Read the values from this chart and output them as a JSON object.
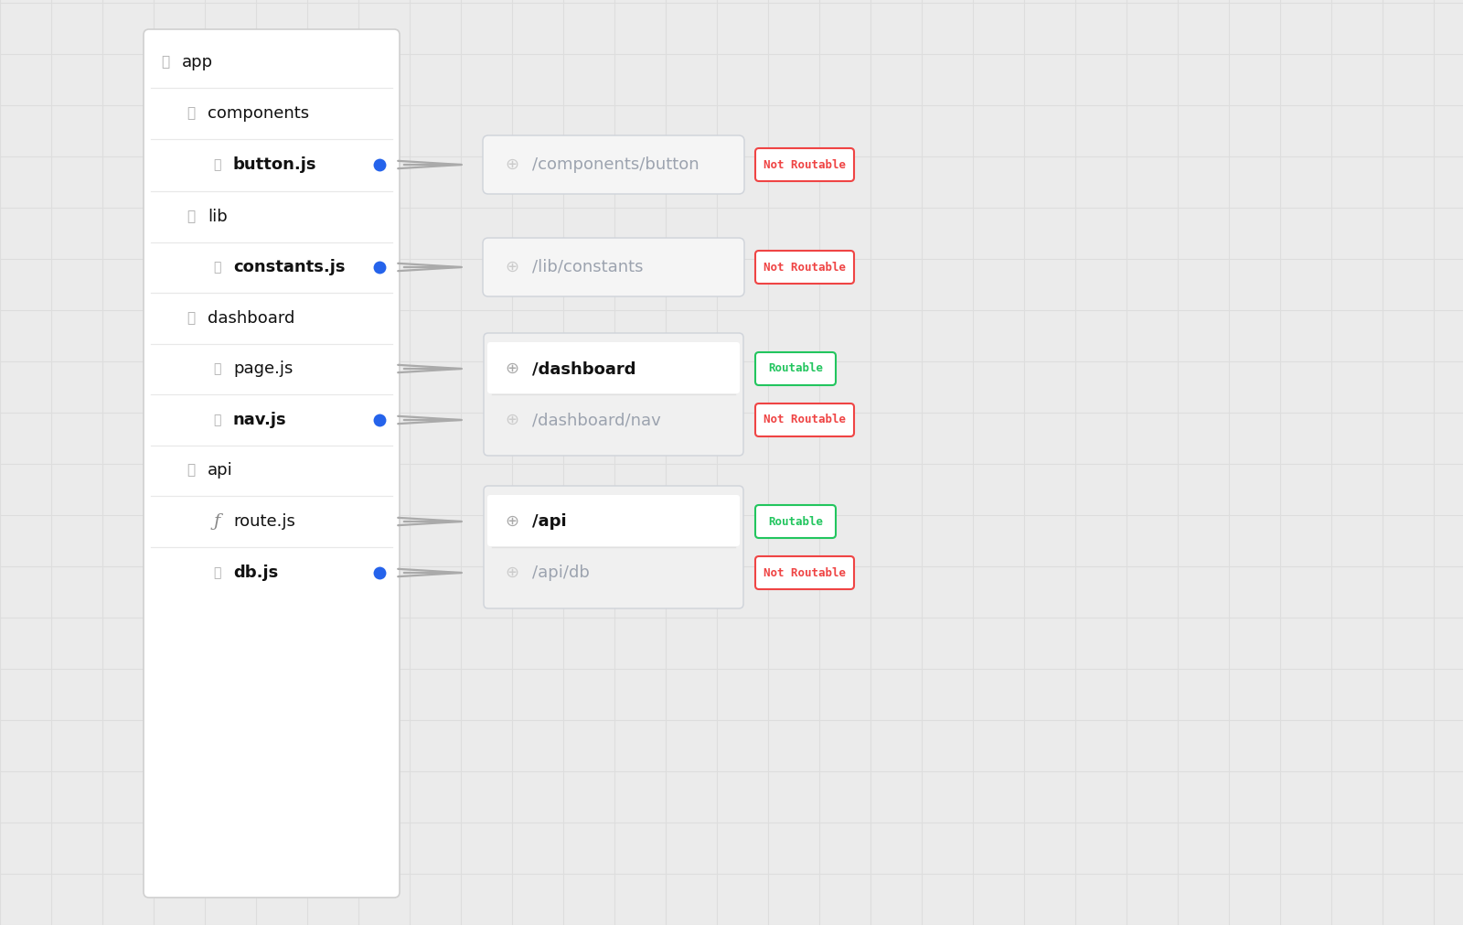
{
  "bg_color": "#ebebeb",
  "panel_color": "#ffffff",
  "panel_border": "#d0d0d0",
  "grid_line_color": "#dddddd",
  "grid_major_color": "#d8d8d8",
  "dot_color": "#2563eb",
  "arrow_color": "#aaaaaa",
  "url_box_border": "#d1d5db",
  "routable_badge": {
    "bg": "#ffffff",
    "border": "#22c55e",
    "text": "#22c55e",
    "label": "Routable"
  },
  "not_routable_badge": {
    "bg": "#ffffff",
    "border": "#ef4444",
    "text": "#ef4444",
    "label": "Not Routable"
  },
  "rows": [
    {
      "label": "app",
      "indent": 0,
      "type": "folder",
      "bold": false,
      "dot": false
    },
    {
      "label": "components",
      "indent": 1,
      "type": "folder",
      "bold": false,
      "dot": false
    },
    {
      "label": "button.js",
      "indent": 2,
      "type": "file",
      "bold": true,
      "dot": true,
      "url": "/components/button",
      "routable": false
    },
    {
      "label": "lib",
      "indent": 1,
      "type": "folder",
      "bold": false,
      "dot": false
    },
    {
      "label": "constants.js",
      "indent": 2,
      "type": "file",
      "bold": true,
      "dot": true,
      "url": "/lib/constants",
      "routable": false
    },
    {
      "label": "dashboard",
      "indent": 1,
      "type": "folder",
      "bold": false,
      "dot": false
    },
    {
      "label": "page.js",
      "indent": 2,
      "type": "file",
      "bold": false,
      "dot": false,
      "url": "/dashboard",
      "routable": true
    },
    {
      "label": "nav.js",
      "indent": 2,
      "type": "file",
      "bold": true,
      "dot": true,
      "url": "/dashboard/nav",
      "routable": false
    },
    {
      "label": "api",
      "indent": 1,
      "type": "folder",
      "bold": false,
      "dot": false
    },
    {
      "label": "route.js",
      "indent": 2,
      "type": "route",
      "bold": false,
      "dot": false,
      "url": "/api",
      "routable": true
    },
    {
      "label": "db.js",
      "indent": 2,
      "type": "file",
      "bold": true,
      "dot": true,
      "url": "/api/db",
      "routable": false
    }
  ]
}
